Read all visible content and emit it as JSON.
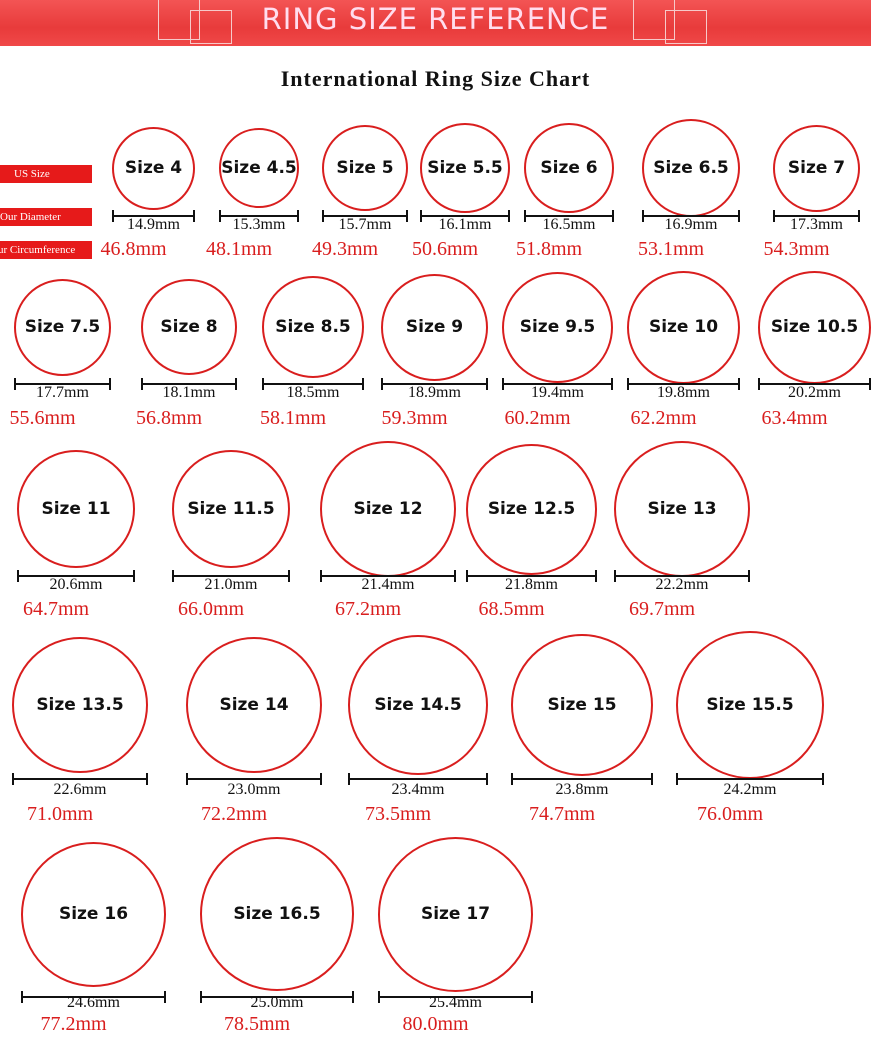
{
  "header": {
    "title": "RING SIZE REFERENCE",
    "accent_color": "#e83b3b"
  },
  "chart_title": "International Ring Size Chart",
  "legend": {
    "us_size": "US Size",
    "diameter": "Our Diameter",
    "circumference": "Our Circumference"
  },
  "ring_color": "#d91e1e",
  "rings": [
    {
      "size": "Size 4",
      "diameter": "14.9mm",
      "circumference": "46.8mm"
    },
    {
      "size": "Size 4.5",
      "diameter": "15.3mm",
      "circumference": "48.1mm"
    },
    {
      "size": "Size 5",
      "diameter": "15.7mm",
      "circumference": "49.3mm"
    },
    {
      "size": "Size 5.5",
      "diameter": "16.1mm",
      "circumference": "50.6mm"
    },
    {
      "size": "Size 6",
      "diameter": "16.5mm",
      "circumference": "51.8mm"
    },
    {
      "size": "Size 6.5",
      "diameter": "16.9mm",
      "circumference": "53.1mm"
    },
    {
      "size": "Size 7",
      "diameter": "17.3mm",
      "circumference": "54.3mm"
    },
    {
      "size": "Size 7.5",
      "diameter": "17.7mm",
      "circumference": "55.6mm"
    },
    {
      "size": "Size 8",
      "diameter": "18.1mm",
      "circumference": "56.8mm"
    },
    {
      "size": "Size 8.5",
      "diameter": "18.5mm",
      "circumference": "58.1mm"
    },
    {
      "size": "Size 9",
      "diameter": "18.9mm",
      "circumference": "59.3mm"
    },
    {
      "size": "Size 9.5",
      "diameter": "19.4mm",
      "circumference": "60.2mm"
    },
    {
      "size": "Size 10",
      "diameter": "19.8mm",
      "circumference": "62.2mm"
    },
    {
      "size": "Size 10.5",
      "diameter": "20.2mm",
      "circumference": "63.4mm"
    },
    {
      "size": "Size 11",
      "diameter": "20.6mm",
      "circumference": "64.7mm"
    },
    {
      "size": "Size 11.5",
      "diameter": "21.0mm",
      "circumference": "66.0mm"
    },
    {
      "size": "Size 12",
      "diameter": "21.4mm",
      "circumference": "67.2mm"
    },
    {
      "size": "Size 12.5",
      "diameter": "21.8mm",
      "circumference": "68.5mm"
    },
    {
      "size": "Size 13",
      "diameter": "22.2mm",
      "circumference": "69.7mm"
    },
    {
      "size": "Size 13.5",
      "diameter": "22.6mm",
      "circumference": "71.0mm"
    },
    {
      "size": "Size 14",
      "diameter": "23.0mm",
      "circumference": "72.2mm"
    },
    {
      "size": "Size 14.5",
      "diameter": "23.4mm",
      "circumference": "73.5mm"
    },
    {
      "size": "Size 15",
      "diameter": "23.8mm",
      "circumference": "74.7mm"
    },
    {
      "size": "Size 15.5",
      "diameter": "24.2mm",
      "circumference": "76.0mm"
    },
    {
      "size": "Size 16",
      "diameter": "24.6mm",
      "circumference": "77.2mm"
    },
    {
      "size": "Size 16.5",
      "diameter": "25.0mm",
      "circumference": "78.5mm"
    },
    {
      "size": "Size 17",
      "diameter": "25.4mm",
      "circumference": "80.0mm"
    }
  ]
}
